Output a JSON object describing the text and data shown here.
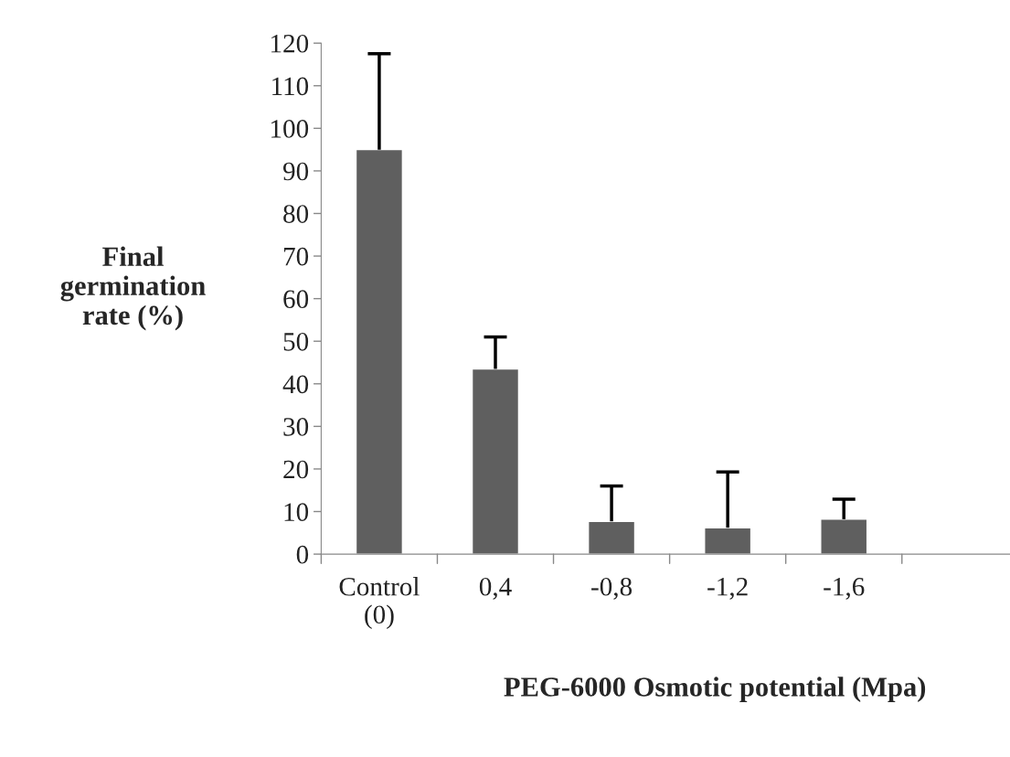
{
  "chart_data": {
    "type": "bar",
    "categories": [
      "Control\n(0)",
      "0,4",
      "-0,8",
      "-1,2",
      "-1,6",
      null
    ],
    "values": [
      95,
      43.5,
      7.7,
      6.2,
      8.2,
      null
    ],
    "errors": [
      [
        95,
        117.5
      ],
      [
        43.5,
        51
      ],
      [
        7.7,
        16
      ],
      [
        6.2,
        19.3
      ],
      [
        8.2,
        12.9
      ],
      null
    ],
    "color": "#5f5f5f",
    "xlabel": "PEG-6000 Osmotic potential (Mpa)",
    "ylabel": "Final\ngermination\nrate (%)",
    "ylim": [
      0,
      120
    ],
    "yticks": [
      0,
      10,
      20,
      30,
      40,
      50,
      60,
      70,
      80,
      90,
      100,
      110,
      120
    ],
    "grid": false,
    "legend": false
  }
}
